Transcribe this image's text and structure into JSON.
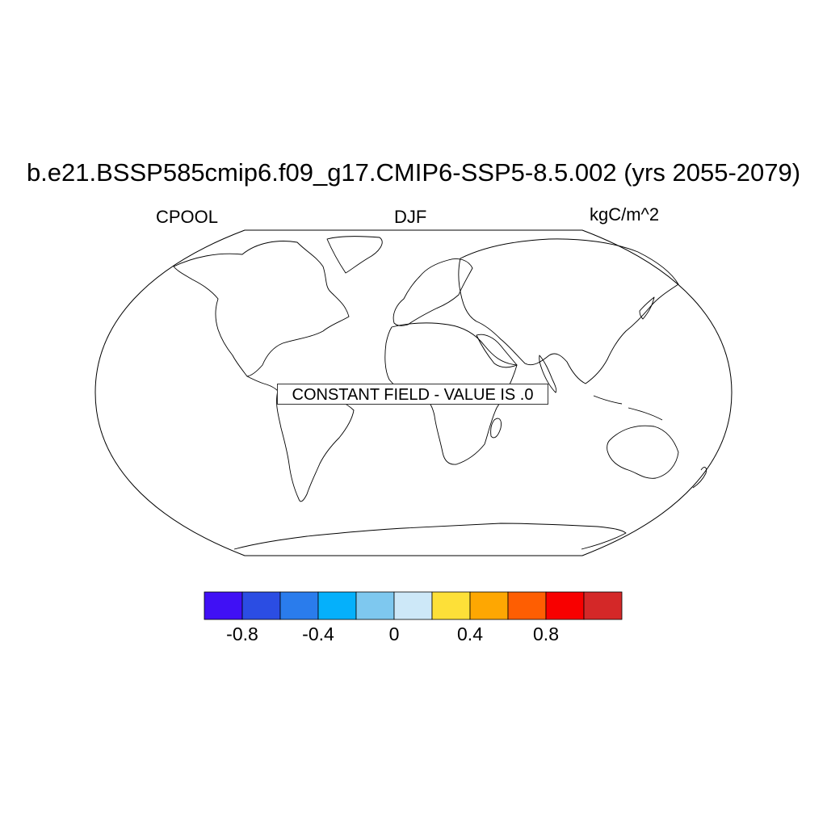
{
  "title": "b.e21.BSSP585cmip6.f09_g17.CMIP6-SSP5-8.5.002 (yrs 2055-2079)",
  "left_label": "CPOOL",
  "center_label": "DJF",
  "right_label": "kgC/m^2",
  "notice": "CONSTANT FIELD - VALUE IS .0",
  "projection": "Robinson",
  "colorbar": {
    "colors": [
      "#4010f5",
      "#2b4de3",
      "#2a7cec",
      "#05b0fb",
      "#7ec8ef",
      "#cde8f8",
      "#fde038",
      "#fea702",
      "#fe5e02",
      "#f80000",
      "#d42828"
    ],
    "ticks": [
      {
        "label": "-0.8",
        "value": -0.8
      },
      {
        "label": "-0.4",
        "value": -0.4
      },
      {
        "label": "0",
        "value": 0
      },
      {
        "label": "0.4",
        "value": 0.4
      },
      {
        "label": "0.8",
        "value": 0.8
      }
    ]
  }
}
